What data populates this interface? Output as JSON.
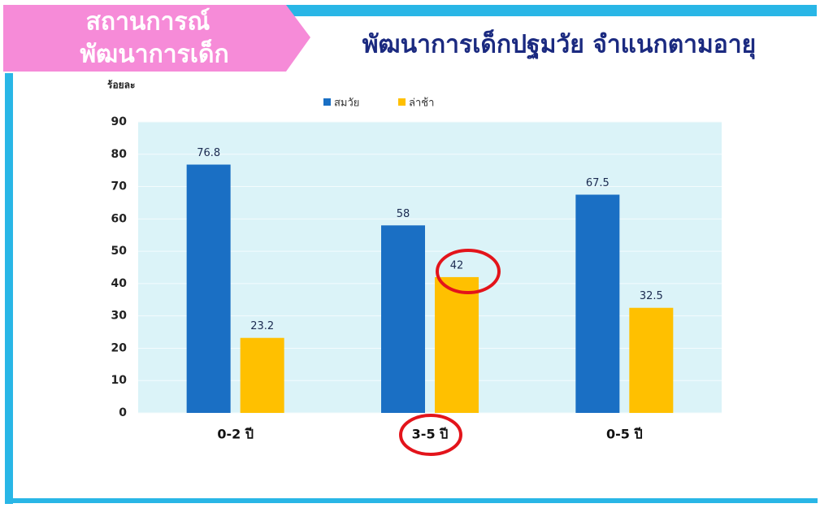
{
  "header": {
    "lines": [
      "สถานการณ์",
      "พัฒนาการเด็ก"
    ]
  },
  "chart_data": {
    "type": "bar",
    "title": "พัฒนาการเด็กปฐมวัย จำแนกตามอายุ",
    "ylabel": "ร้อยละ",
    "categories": [
      "0-2 ปี",
      "3-5 ปี",
      "0-5 ปี"
    ],
    "series": [
      {
        "name": "สมวัย",
        "color": "#1a6fc4",
        "values": [
          76.8,
          58,
          67.5
        ]
      },
      {
        "name": "ล่าช้า",
        "color": "#ffc000",
        "values": [
          23.2,
          42,
          32.5
        ]
      }
    ],
    "ylim": [
      0,
      90
    ],
    "yticks": [
      0,
      10,
      20,
      30,
      40,
      50,
      60,
      70,
      80,
      90
    ],
    "grid": true,
    "legend": "top"
  }
}
